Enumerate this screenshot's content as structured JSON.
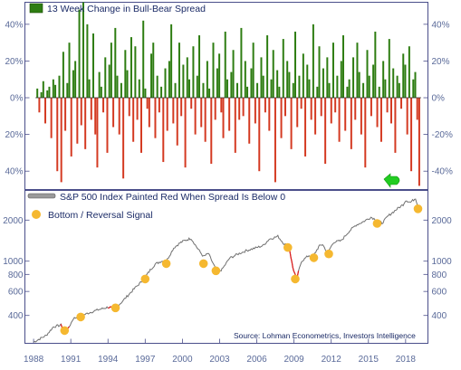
{
  "chart_data": [
    {
      "type": "bar",
      "legend": "13 Week Change in Bull-Bear Spread",
      "colors": {
        "positive": "#2e7d12",
        "negative": "#d43a22",
        "legend_swatch": "#2e7d12",
        "arrow": "#22cc22"
      },
      "yticks": [
        40,
        20,
        0,
        -20,
        -40
      ],
      "ytick_labels_left": [
        "40%",
        "20%",
        "0%",
        "20%",
        "40%"
      ],
      "ytick_labels_right": [
        "40%",
        "20%",
        "0%",
        "-20%",
        "-40%"
      ],
      "ylim": [
        -50,
        52
      ],
      "xlim": [
        1987.3,
        2019.8
      ],
      "x_start": 1988.3,
      "x_end": 2019.1,
      "grid": false,
      "legend_position": "top-left",
      "series": [
        {
          "values": [
            5,
            -8,
            3,
            9,
            -14,
            4,
            6,
            -22,
            10,
            7,
            -40,
            12,
            -46,
            25,
            -18,
            8,
            30,
            -32,
            15,
            20,
            -25,
            48,
            -15,
            52,
            -28,
            40,
            10,
            -12,
            35,
            -20,
            -38,
            14,
            6,
            -8,
            22,
            -30,
            18,
            30,
            -16,
            38,
            12,
            -20,
            8,
            -44,
            26,
            15,
            -10,
            33,
            -24,
            28,
            -12,
            10,
            -30,
            42,
            5,
            -6,
            -16,
            24,
            30,
            -22,
            12,
            -8,
            6,
            -35,
            16,
            -18,
            20,
            40,
            -14,
            8,
            -26,
            30,
            -10,
            18,
            -38,
            22,
            10,
            -6,
            28,
            -20,
            12,
            34,
            -16,
            8,
            -24,
            20,
            5,
            -36,
            30,
            -12,
            16,
            24,
            -8,
            -22,
            36,
            10,
            -18,
            14,
            26,
            -30,
            8,
            -12,
            38,
            -10,
            20,
            6,
            -25,
            16,
            30,
            -14,
            8,
            -40,
            22,
            12,
            -8,
            34,
            -18,
            10,
            26,
            -46,
            15,
            6,
            -22,
            32,
            -10,
            20,
            14,
            -28,
            8,
            36,
            -16,
            12,
            -6,
            24,
            -32,
            18,
            10,
            -12,
            40,
            -20,
            6,
            28,
            -10,
            16,
            -36,
            22,
            8,
            -14,
            30,
            -8,
            12,
            -24,
            20,
            34,
            -18,
            6,
            10,
            -28,
            22,
            -12,
            30,
            14,
            -20,
            8,
            -38,
            26,
            12,
            -10,
            18,
            36,
            -16,
            6,
            -24,
            20,
            10,
            -8,
            32,
            -14,
            16,
            -30,
            12,
            8,
            -6,
            24,
            18,
            -20,
            28,
            -40,
            10,
            14,
            -12,
            -48
          ]
        }
      ]
    },
    {
      "type": "line",
      "legend": "S&P 500 Index Painted Red When Spread Is Below 0",
      "signal_legend": "Bottom / Reversal Signal",
      "source": "Source: Lohman Econometrics, Investors Intelligence",
      "log_scale": true,
      "colors": {
        "line": "#707070",
        "red": "#dd2222",
        "signal": "#f5b830"
      },
      "yticks": [
        400,
        600,
        800,
        1000,
        2000
      ],
      "ytick_labels": [
        "400",
        "600",
        "800",
        "1000",
        "2000"
      ],
      "ylim": [
        250,
        3300
      ],
      "xticks": [
        1988,
        1991,
        1994,
        1997,
        2000,
        2003,
        2006,
        2009,
        2012,
        2015,
        2018
      ],
      "xtick_labels": [
        "1988",
        "1991",
        "1994",
        "1997",
        "2000",
        "2003",
        "2006",
        "2009",
        "2012",
        "2015",
        "2018"
      ],
      "xlim": [
        1987.3,
        2019.8
      ],
      "grid": false,
      "legend_position": "top-left",
      "series": [
        {
          "x": [
            1988.0,
            1988.5,
            1989.0,
            1989.6,
            1990.2,
            1990.6,
            1990.8,
            1991.2,
            1991.8,
            1992.5,
            1993.2,
            1994.0,
            1994.5,
            1995.0,
            1995.6,
            1996.2,
            1996.8,
            1997.4,
            1997.8,
            1998.3,
            1998.7,
            1999.3,
            1999.8,
            2000.2,
            2000.7,
            2001.2,
            2001.7,
            2002.1,
            2002.5,
            2002.8,
            2003.2,
            2003.8,
            2004.5,
            2005.2,
            2005.9,
            2006.5,
            2007.0,
            2007.7,
            2008.2,
            2008.6,
            2008.9,
            2009.2,
            2009.6,
            2010.2,
            2010.5,
            2011.0,
            2011.3,
            2011.7,
            2012.2,
            2012.8,
            2013.4,
            2014.0,
            2014.6,
            2015.2,
            2015.7,
            2016.1,
            2016.6,
            2017.2,
            2017.8,
            2018.0,
            2018.4,
            2018.8,
            2018.95,
            2019.1
          ],
          "y": [
            255,
            270,
            285,
            330,
            340,
            310,
            320,
            380,
            395,
            420,
            440,
            460,
            450,
            490,
            560,
            640,
            720,
            860,
            950,
            1000,
            1000,
            1250,
            1360,
            1420,
            1470,
            1250,
            1080,
            1140,
            950,
            830,
            870,
            1050,
            1130,
            1200,
            1250,
            1300,
            1450,
            1520,
            1340,
            1280,
            900,
            740,
            1000,
            1100,
            1070,
            1280,
            1330,
            1150,
            1380,
            1410,
            1640,
            1840,
            1950,
            2100,
            2000,
            1900,
            2150,
            2370,
            2600,
            2800,
            2700,
            2900,
            2600,
            2400
          ],
          "red_segments": [
            [
              1990.2,
              1990.9
            ],
            [
              1994.0,
              1994.6
            ],
            [
              2008.4,
              2009.4
            ]
          ]
        }
      ],
      "signals": [
        {
          "x": 1990.5,
          "y": 310
        },
        {
          "x": 1991.8,
          "y": 390
        },
        {
          "x": 1994.6,
          "y": 455
        },
        {
          "x": 1997.0,
          "y": 740
        },
        {
          "x": 1998.7,
          "y": 960
        },
        {
          "x": 2001.7,
          "y": 960
        },
        {
          "x": 2002.7,
          "y": 850
        },
        {
          "x": 2008.5,
          "y": 1260
        },
        {
          "x": 2009.1,
          "y": 740
        },
        {
          "x": 2010.6,
          "y": 1060
        },
        {
          "x": 2011.8,
          "y": 1130
        },
        {
          "x": 2015.7,
          "y": 1890
        },
        {
          "x": 2019.0,
          "y": 2420
        }
      ]
    }
  ]
}
